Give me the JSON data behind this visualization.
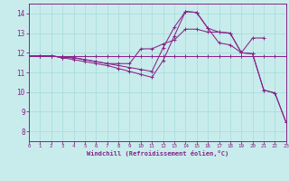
{
  "xlabel": "Windchill (Refroidissement éolien,°C)",
  "xlim": [
    0,
    23
  ],
  "ylim": [
    7.5,
    14.5
  ],
  "xticks": [
    0,
    1,
    2,
    3,
    4,
    5,
    6,
    7,
    8,
    9,
    10,
    11,
    12,
    13,
    14,
    15,
    16,
    17,
    18,
    19,
    20,
    21,
    22,
    23
  ],
  "yticks": [
    8,
    9,
    10,
    11,
    12,
    13,
    14
  ],
  "background_color": "#c8ecec",
  "line_color": "#882288",
  "grid_color": "#aadddd",
  "lines": [
    {
      "x": [
        0,
        1,
        2,
        3,
        4,
        5,
        6,
        7,
        8,
        9,
        10,
        11,
        12,
        13,
        14,
        15,
        16,
        17,
        18,
        19,
        20,
        21,
        22,
        23
      ],
      "y": [
        11.85,
        11.85,
        11.85,
        11.85,
        11.85,
        11.85,
        11.85,
        11.85,
        11.85,
        11.85,
        11.85,
        11.85,
        11.85,
        11.85,
        11.85,
        11.85,
        11.85,
        11.85,
        11.85,
        11.85,
        11.85,
        11.85,
        11.85,
        11.85
      ]
    },
    {
      "x": [
        0,
        1,
        2,
        3,
        4,
        5,
        6,
        7,
        8,
        9,
        10,
        11,
        12,
        13,
        14,
        15,
        16,
        17,
        18,
        19,
        20,
        21
      ],
      "y": [
        11.85,
        11.85,
        11.85,
        11.75,
        11.75,
        11.65,
        11.55,
        11.45,
        11.45,
        11.45,
        12.2,
        12.2,
        12.45,
        12.65,
        13.2,
        13.2,
        13.05,
        13.05,
        13.0,
        12.0,
        12.75,
        12.75
      ]
    },
    {
      "x": [
        0,
        1,
        2,
        3,
        4,
        5,
        6,
        7,
        8,
        9,
        10,
        11,
        12,
        13,
        14,
        15,
        16,
        17,
        18,
        19,
        20,
        21,
        22,
        23
      ],
      "y": [
        11.85,
        11.85,
        11.85,
        11.75,
        11.75,
        11.65,
        11.55,
        11.45,
        11.35,
        11.25,
        11.15,
        11.05,
        12.25,
        13.3,
        14.1,
        14.05,
        13.25,
        13.05,
        13.0,
        12.0,
        11.95,
        10.1,
        9.95,
        8.45
      ]
    },
    {
      "x": [
        0,
        1,
        2,
        3,
        4,
        5,
        6,
        7,
        8,
        9,
        10,
        11,
        12,
        13,
        14,
        15,
        16,
        17,
        18,
        19,
        20,
        21,
        22,
        23
      ],
      "y": [
        11.85,
        11.85,
        11.85,
        11.75,
        11.65,
        11.55,
        11.45,
        11.35,
        11.2,
        11.05,
        10.9,
        10.75,
        11.6,
        12.85,
        14.1,
        14.05,
        13.25,
        12.5,
        12.4,
        12.0,
        11.95,
        10.1,
        9.95,
        8.45
      ]
    }
  ]
}
